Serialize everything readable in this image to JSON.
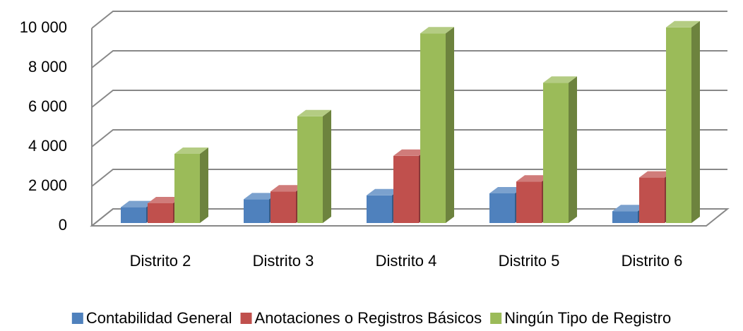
{
  "chart_data": {
    "type": "bar3d",
    "categories": [
      "Distrito 2",
      "Distrito 3",
      "Distrito 4",
      "Distrito 5",
      "Distrito 6"
    ],
    "series": [
      {
        "name": "Contabilidad General",
        "color": "#4f81bd",
        "values": [
          800,
          1200,
          1400,
          1500,
          600
        ]
      },
      {
        "name": "Anotaciones o Registros Básicos",
        "color": "#c0504d",
        "values": [
          1000,
          1600,
          3400,
          2100,
          2300
        ]
      },
      {
        "name": "Ningún Tipo de Registro",
        "color": "#9bbb59",
        "values": [
          3500,
          5400,
          9600,
          7100,
          9900
        ]
      }
    ],
    "ylim": [
      0,
      10000
    ],
    "yticks": [
      0,
      {
        "value": 2000,
        "label": "2 000"
      },
      {
        "value": 4000,
        "label": "4 000"
      },
      {
        "value": 6000,
        "label": "6 000"
      },
      {
        "value": 8000,
        "label": "8 000"
      },
      {
        "value": 10000,
        "label": "10 000"
      }
    ],
    "grid": true,
    "legend": "bottom"
  }
}
